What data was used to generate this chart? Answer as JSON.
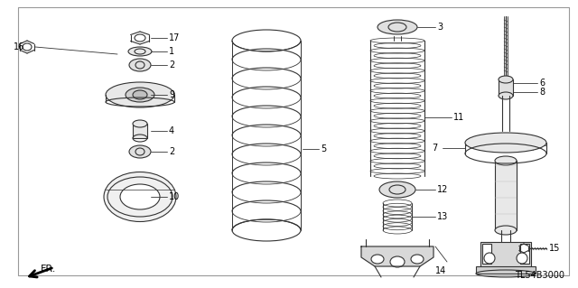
{
  "bg_color": "#ffffff",
  "border_color": "#999999",
  "line_color": "#333333",
  "title_code": "TL54B3000",
  "fig_w": 6.4,
  "fig_h": 3.19,
  "dpi": 100
}
